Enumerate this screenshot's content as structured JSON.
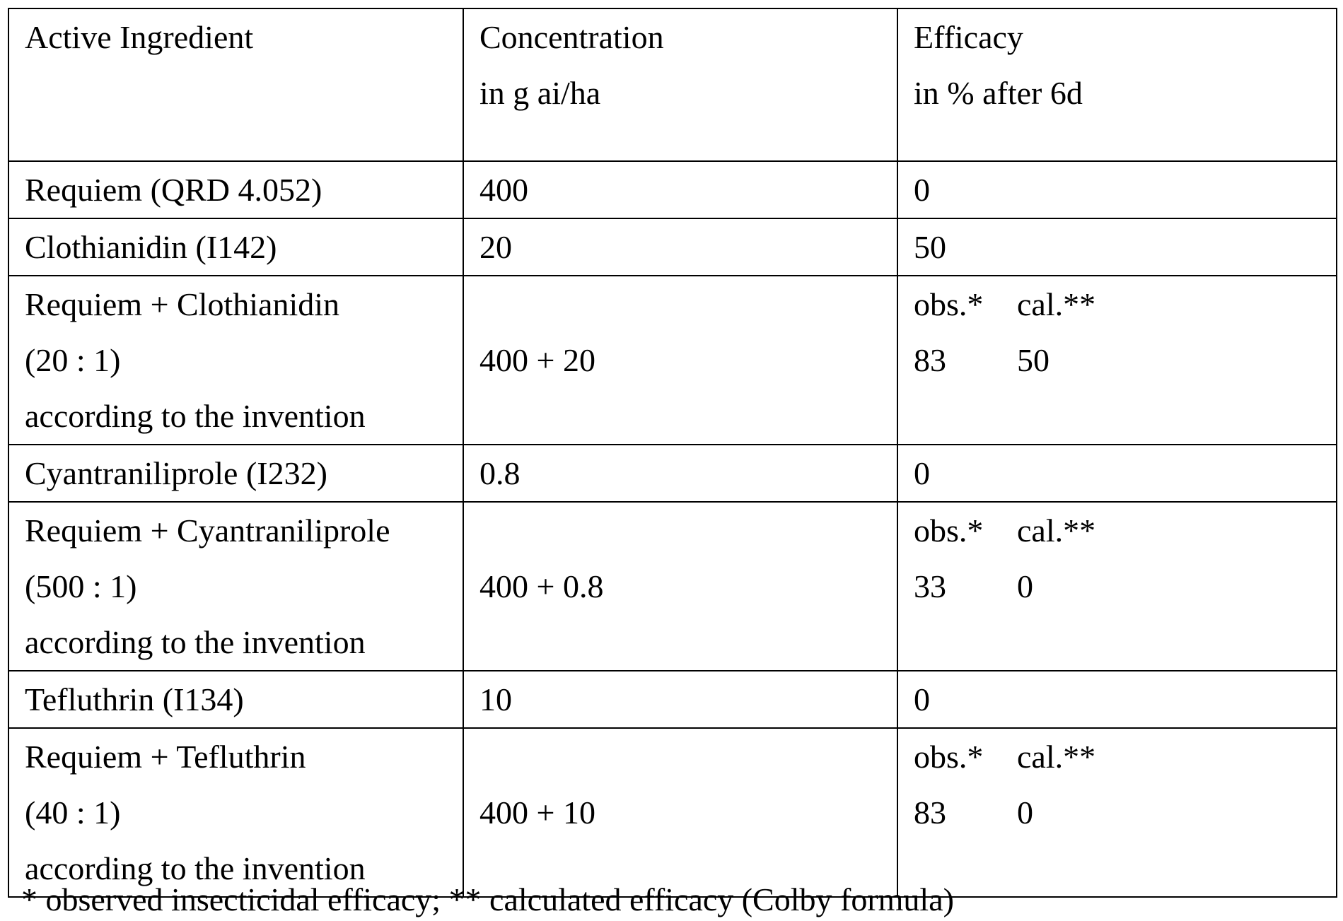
{
  "headers": {
    "active_ingredient": "Active Ingredient",
    "concentration": [
      "Concentration",
      "in g ai/ha"
    ],
    "efficacy": [
      "Efficacy",
      "in % after 6d"
    ]
  },
  "rows": [
    {
      "ingredient": [
        "Requiem (QRD 4.052)"
      ],
      "concentration": "400",
      "efficacy": "0"
    },
    {
      "ingredient": [
        "Clothianidin (I142)"
      ],
      "concentration": "20",
      "efficacy": "50"
    },
    {
      "ingredient": [
        "Requiem + Clothianidin",
        "(20 : 1)",
        "according to the invention"
      ],
      "concentration": "400 + 20",
      "obs_label": "obs.*",
      "cal_label": "cal.**",
      "obs": "83",
      "cal": "50"
    },
    {
      "ingredient": [
        "Cyantraniliprole (I232)"
      ],
      "concentration": "0.8",
      "efficacy": "0"
    },
    {
      "ingredient": [
        "Requiem + Cyantraniliprole",
        "(500 : 1)",
        "according to the invention"
      ],
      "concentration": "400 + 0.8",
      "obs_label": "obs.*",
      "cal_label": "cal.**",
      "obs": "33",
      "cal": "0"
    },
    {
      "ingredient": [
        "Tefluthrin (I134)"
      ],
      "concentration": "10",
      "efficacy": "0"
    },
    {
      "ingredient": [
        "Requiem + Tefluthrin",
        "(40 : 1)",
        "according to the invention"
      ],
      "concentration": "400 + 10",
      "obs_label": "obs.*",
      "cal_label": "cal.**",
      "obs": "83",
      "cal": "0"
    }
  ],
  "footnote": "* observed insecticidal efficacy; ** calculated efficacy (Colby formula)"
}
